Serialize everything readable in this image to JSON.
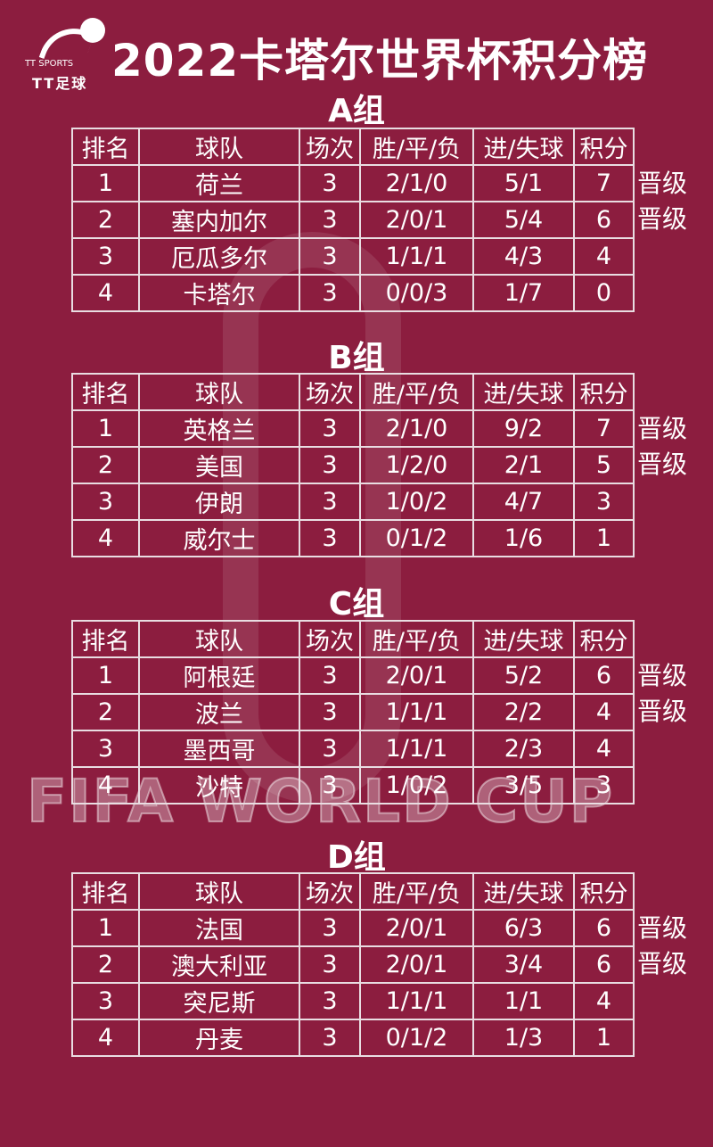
{
  "logo": {
    "en": "TT SPORTS",
    "cn": "TT足球"
  },
  "title": "2022卡塔尔世界杯积分榜",
  "watermark": "FIFA WORLD CUP",
  "headers": [
    "排名",
    "球队",
    "场次",
    "胜/平/负",
    "进/失球",
    "积分"
  ],
  "groups": [
    {
      "name": "A组",
      "rows": [
        {
          "rank": "1",
          "team": "荷兰",
          "played": "3",
          "wdl": "2/1/0",
          "goals": "5/1",
          "points": "7",
          "status": "晋级"
        },
        {
          "rank": "2",
          "team": "塞内加尔",
          "played": "3",
          "wdl": "2/0/1",
          "goals": "5/4",
          "points": "6",
          "status": "晋级"
        },
        {
          "rank": "3",
          "team": "厄瓜多尔",
          "played": "3",
          "wdl": "1/1/1",
          "goals": "4/3",
          "points": "4",
          "status": ""
        },
        {
          "rank": "4",
          "team": "卡塔尔",
          "played": "3",
          "wdl": "0/0/3",
          "goals": "1/7",
          "points": "0",
          "status": ""
        }
      ]
    },
    {
      "name": "B组",
      "rows": [
        {
          "rank": "1",
          "team": "英格兰",
          "played": "3",
          "wdl": "2/1/0",
          "goals": "9/2",
          "points": "7",
          "status": "晋级"
        },
        {
          "rank": "2",
          "team": "美国",
          "played": "3",
          "wdl": "1/2/0",
          "goals": "2/1",
          "points": "5",
          "status": "晋级"
        },
        {
          "rank": "3",
          "team": "伊朗",
          "played": "3",
          "wdl": "1/0/2",
          "goals": "4/7",
          "points": "3",
          "status": ""
        },
        {
          "rank": "4",
          "team": "威尔士",
          "played": "3",
          "wdl": "0/1/2",
          "goals": "1/6",
          "points": "1",
          "status": ""
        }
      ]
    },
    {
      "name": "C组",
      "rows": [
        {
          "rank": "1",
          "team": "阿根廷",
          "played": "3",
          "wdl": "2/0/1",
          "goals": "5/2",
          "points": "6",
          "status": "晋级"
        },
        {
          "rank": "2",
          "team": "波兰",
          "played": "3",
          "wdl": "1/1/1",
          "goals": "2/2",
          "points": "4",
          "status": "晋级"
        },
        {
          "rank": "3",
          "team": "墨西哥",
          "played": "3",
          "wdl": "1/1/1",
          "goals": "2/3",
          "points": "4",
          "status": ""
        },
        {
          "rank": "4",
          "team": "沙特",
          "played": "3",
          "wdl": "1/0/2",
          "goals": "3/5",
          "points": "3",
          "status": ""
        }
      ]
    },
    {
      "name": "D组",
      "rows": [
        {
          "rank": "1",
          "team": "法国",
          "played": "3",
          "wdl": "2/0/1",
          "goals": "6/3",
          "points": "6",
          "status": "晋级"
        },
        {
          "rank": "2",
          "team": "澳大利亚",
          "played": "3",
          "wdl": "2/0/1",
          "goals": "3/4",
          "points": "6",
          "status": "晋级"
        },
        {
          "rank": "3",
          "team": "突尼斯",
          "played": "3",
          "wdl": "1/1/1",
          "goals": "1/1",
          "points": "4",
          "status": ""
        },
        {
          "rank": "4",
          "team": "丹麦",
          "played": "3",
          "wdl": "0/1/2",
          "goals": "1/3",
          "points": "1",
          "status": ""
        }
      ]
    }
  ]
}
